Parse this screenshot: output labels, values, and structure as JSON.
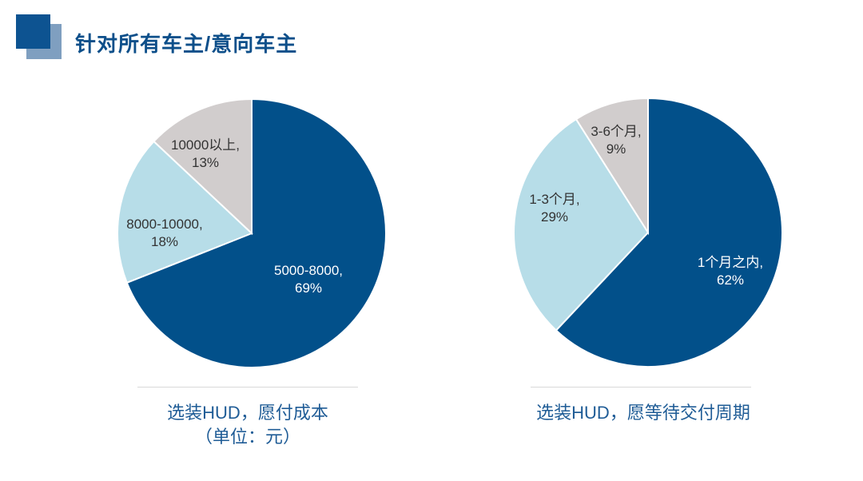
{
  "header": {
    "title": "针对所有车主/意向车主"
  },
  "colors": {
    "dark_blue": "#02508a",
    "light_blue": "#b7dde8",
    "gray": "#d1cdcd",
    "title_color": "#0d4f8a",
    "caption_color": "#1f5c96"
  },
  "chart_data": [
    {
      "type": "pie",
      "title": "选装HUD，愿付成本",
      "subtitle": "（单位：元）",
      "slices": [
        {
          "label": "5000-8000",
          "value": 69,
          "display": "69%"
        },
        {
          "label": "8000-10000",
          "value": 18,
          "display": "18%"
        },
        {
          "label": "10000以上",
          "value": 13,
          "display": "13%"
        }
      ]
    },
    {
      "type": "pie",
      "title": "选装HUD，愿等待交付周期",
      "slices": [
        {
          "label": "1个月之内",
          "value": 62,
          "display": "62%"
        },
        {
          "label": "1-3个月",
          "value": 29,
          "display": "29%"
        },
        {
          "label": "3-6个月",
          "value": 9,
          "display": "9%"
        }
      ]
    }
  ]
}
